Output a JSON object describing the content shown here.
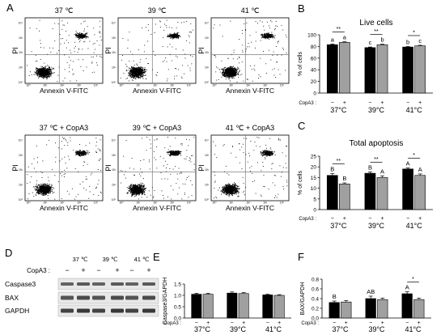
{
  "panel_letters": {
    "a": "A",
    "b": "B",
    "c": "C",
    "d": "D",
    "e": "E",
    "f": "F"
  },
  "flow": {
    "titles": [
      "37 ℃",
      "39 ℃",
      "41 ℃",
      "37 ℃ + CopA3",
      "39 ℃ + CopA3",
      "41 ℃ + CopA3"
    ],
    "ylabel": "PI",
    "xlabel": "Annexin V-FITC",
    "ticks": [
      "10⁰",
      "10¹",
      "10²",
      "10³",
      "10⁴"
    ]
  },
  "western": {
    "temps": [
      "37 ℃",
      "39 ℃",
      "41 ℃"
    ],
    "copa3_label": "CopA3 :",
    "signs": [
      "−",
      "+",
      "−",
      "+",
      "−",
      "+"
    ],
    "proteins": [
      "Caspase3",
      "BAX",
      "GAPDH"
    ]
  },
  "chart_data": [
    {
      "id": "B",
      "type": "bar",
      "title": "Live cells",
      "ylabel": "% of cells",
      "ylim": [
        0,
        100
      ],
      "yticks": [
        "0",
        "20",
        "40",
        "60",
        "80",
        "100"
      ],
      "categories": [
        "37°C",
        "39°C",
        "41°C"
      ],
      "series": [
        {
          "name": "−",
          "color": "#000000",
          "values": [
            83,
            78,
            79
          ],
          "err": [
            1.2,
            1,
            1
          ],
          "labels": [
            "a",
            "c",
            "b"
          ]
        },
        {
          "name": "+",
          "color": "#a0a0a0",
          "values": [
            87,
            83,
            81
          ],
          "err": [
            1,
            1,
            1
          ],
          "labels": [
            "a",
            "b",
            "c"
          ]
        }
      ],
      "sig": [
        "**",
        "**",
        "*"
      ],
      "copa3_label": "CopA3 :",
      "signs": [
        "−",
        "+"
      ]
    },
    {
      "id": "C",
      "type": "bar",
      "title": "Total apoptosis",
      "ylabel": "% of cells",
      "ylim": [
        0,
        25
      ],
      "yticks": [
        "0",
        "5",
        "10",
        "15",
        "20",
        "25"
      ],
      "categories": [
        "37°C",
        "39°C",
        "41°C"
      ],
      "series": [
        {
          "name": "−",
          "color": "#000000",
          "values": [
            16,
            17,
            19
          ],
          "err": [
            0.8,
            0.6,
            0.5
          ],
          "labels": [
            "B",
            "B",
            "A"
          ]
        },
        {
          "name": "+",
          "color": "#a0a0a0",
          "values": [
            12,
            15,
            16
          ],
          "err": [
            0.5,
            0.8,
            0.7
          ],
          "labels": [
            "B",
            "A",
            "A"
          ]
        }
      ],
      "sig": [
        "**",
        "**",
        "*"
      ],
      "copa3_label": "CopA3 :",
      "signs": [
        "−",
        "+"
      ]
    },
    {
      "id": "E",
      "type": "bar",
      "ylabel": "Caspase3/GAPDH",
      "ylim": [
        0,
        1.5
      ],
      "yticks": [
        "0.0",
        "0.5",
        "1.0",
        "1.5"
      ],
      "categories": [
        "37°C",
        "39°C",
        "41°C"
      ],
      "series": [
        {
          "name": "−",
          "color": "#000000",
          "values": [
            1.05,
            1.1,
            1.02
          ],
          "err": [
            0.04,
            0.05,
            0.03
          ]
        },
        {
          "name": "+",
          "color": "#a0a0a0",
          "values": [
            1.05,
            1.08,
            1.0
          ],
          "err": [
            0.04,
            0.04,
            0.03
          ]
        }
      ],
      "copa3_label": "CopA3 :",
      "signs": [
        "−",
        "+"
      ]
    },
    {
      "id": "F",
      "type": "bar",
      "ylabel": "BAX/GAPDH",
      "ylim": [
        0,
        0.8
      ],
      "yticks": [
        "0.0",
        "0.2",
        "0.4",
        "0.6",
        "0.8"
      ],
      "categories": [
        "37°C",
        "39°C",
        "41°C"
      ],
      "series": [
        {
          "name": "−",
          "color": "#000000",
          "values": [
            0.32,
            0.4,
            0.5
          ],
          "err": [
            0.03,
            0.05,
            0.04
          ],
          "labels": [
            "B",
            "AB",
            "A"
          ]
        },
        {
          "name": "+",
          "color": "#a0a0a0",
          "values": [
            0.33,
            0.38,
            0.38
          ],
          "err": [
            0.03,
            0.03,
            0.03
          ]
        }
      ],
      "sig": [
        "",
        "",
        "*"
      ],
      "copa3_label": "CopA3 :",
      "signs": [
        "−",
        "+"
      ]
    }
  ]
}
